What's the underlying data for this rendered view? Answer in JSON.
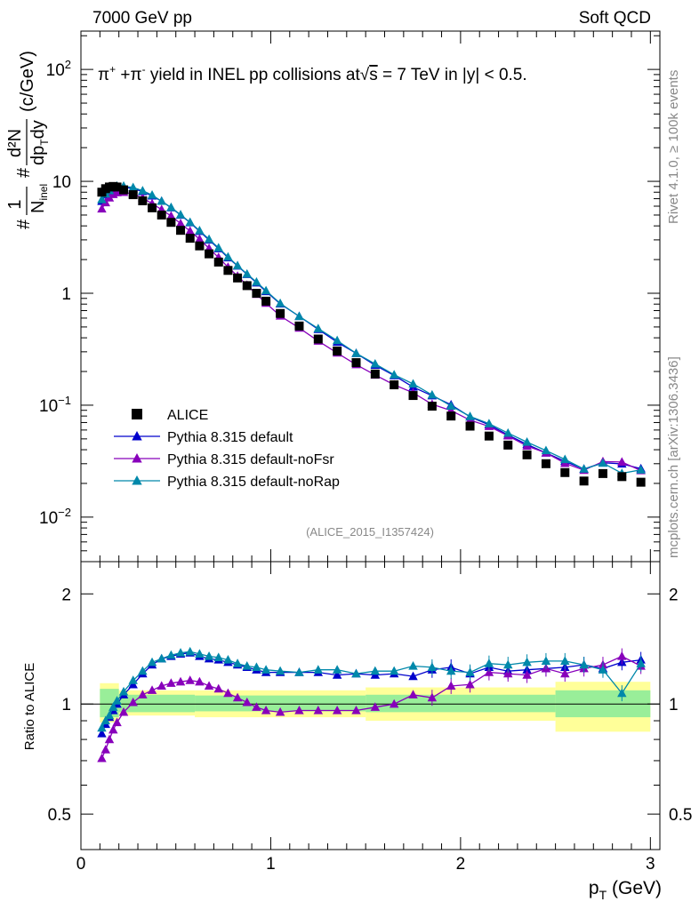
{
  "header": {
    "left": "7000 GeV pp",
    "right": "Soft QCD"
  },
  "side_labels": {
    "rivet": "Rivet 4.1.0, ≥ 100k events",
    "mcplots": "mcplots.cern.ch [arXiv:1306.3436]"
  },
  "chart_data": {
    "type": "scatter",
    "title": "π⁺ +π⁻ yield in INEL pp collisions at √s = 7 TeV in |y| < 0.5.",
    "title_parts": {
      "pre": "π",
      "sup1": "+",
      "mid": " +π",
      "sup2": "-",
      "post": " yield in INEL pp collisions at",
      "sqrt": "√",
      "s": "s",
      "tail": " =  7 TeV in |y| < 0.5."
    },
    "watermark": "(ALICE_2015_I1357424)",
    "xlabel": "p_T (GeV)",
    "xlabel_parts": {
      "main": "p",
      "sub": "T",
      "unit": " (GeV)"
    },
    "ylabel": "#1/N_inel #d²N/dp_T dy (c/GeV)",
    "ylabel_parts": {
      "hash": "#",
      "frac1_num": "1",
      "frac1_den": "N",
      "frac1_den_sub": "inel",
      "frac2_num": "d²N",
      "frac2_den_a": "dp",
      "frac2_den_sub": "T",
      "frac2_den_b": "dy",
      "unit": "(c/GeV)"
    },
    "ratio_ylabel": "Ratio to ALICE",
    "xlim": [
      0,
      3.05
    ],
    "ylim_log": [
      0.004,
      220
    ],
    "ratio_ylim": [
      0.4,
      2.45
    ],
    "x_ticks": [
      0,
      1,
      2,
      3
    ],
    "y_ticks": [
      {
        "value": 100,
        "base": "10",
        "exp": "2"
      },
      {
        "value": 10,
        "base": "10",
        "exp": ""
      },
      {
        "value": 1,
        "base": "1",
        "exp": ""
      },
      {
        "value": 0.1,
        "base": "10",
        "exp": "−1"
      },
      {
        "value": 0.01,
        "base": "10",
        "exp": "−2"
      }
    ],
    "ratio_y_ticks": [
      {
        "value": 0.5,
        "label": "0.5"
      },
      {
        "value": 1,
        "label": "1"
      },
      {
        "value": 2,
        "label": "2"
      }
    ],
    "x": [
      0.11,
      0.13,
      0.15,
      0.17,
      0.19,
      0.225,
      0.275,
      0.325,
      0.375,
      0.425,
      0.475,
      0.525,
      0.575,
      0.625,
      0.675,
      0.725,
      0.775,
      0.825,
      0.875,
      0.925,
      0.975,
      1.05,
      1.15,
      1.25,
      1.35,
      1.45,
      1.55,
      1.65,
      1.75,
      1.85,
      1.95,
      2.05,
      2.15,
      2.25,
      2.35,
      2.45,
      2.55,
      2.65,
      2.75,
      2.85,
      2.95
    ],
    "reference": {
      "name": "ALICE",
      "values": [
        8.0,
        8.6,
        8.9,
        9.0,
        8.9,
        8.4,
        7.6,
        6.7,
        5.8,
        5.0,
        4.3,
        3.65,
        3.1,
        2.65,
        2.25,
        1.9,
        1.6,
        1.37,
        1.17,
        1.0,
        0.85,
        0.66,
        0.51,
        0.39,
        0.305,
        0.24,
        0.19,
        0.152,
        0.122,
        0.098,
        0.08,
        0.065,
        0.053,
        0.044,
        0.036,
        0.03,
        0.025,
        0.021,
        0.0245,
        0.023,
        0.0205
      ],
      "band_stat": [
        {
          "x0": 0.1,
          "x1": 0.2,
          "lo": 0.92,
          "hi": 1.1
        },
        {
          "x0": 0.2,
          "x1": 0.6,
          "lo": 0.95,
          "hi": 1.06
        },
        {
          "x0": 0.6,
          "x1": 1.5,
          "lo": 0.955,
          "hi": 1.055
        },
        {
          "x0": 1.5,
          "x1": 2.5,
          "lo": 0.95,
          "hi": 1.06
        },
        {
          "x0": 2.5,
          "x1": 3.0,
          "lo": 0.92,
          "hi": 1.09
        }
      ],
      "band_syst": [
        {
          "x0": 0.1,
          "x1": 0.2,
          "lo": 0.89,
          "hi": 1.14
        },
        {
          "x0": 0.2,
          "x1": 0.6,
          "lo": 0.93,
          "hi": 1.09
        },
        {
          "x0": 0.6,
          "x1": 1.5,
          "lo": 0.92,
          "hi": 1.09
        },
        {
          "x0": 1.5,
          "x1": 2.5,
          "lo": 0.9,
          "hi": 1.11
        },
        {
          "x0": 2.5,
          "x1": 3.0,
          "lo": 0.84,
          "hi": 1.15
        }
      ]
    },
    "series": [
      {
        "name": "Pythia 8.315 default",
        "color": "#0000cc",
        "ratio": [
          0.83,
          0.88,
          0.92,
          0.96,
          1.0,
          1.06,
          1.13,
          1.21,
          1.28,
          1.33,
          1.35,
          1.37,
          1.38,
          1.35,
          1.33,
          1.32,
          1.3,
          1.28,
          1.26,
          1.24,
          1.22,
          1.22,
          1.22,
          1.22,
          1.2,
          1.21,
          1.2,
          1.21,
          1.19,
          1.24,
          1.26,
          1.21,
          1.26,
          1.23,
          1.24,
          1.25,
          1.26,
          1.28,
          1.25,
          1.3,
          1.32
        ]
      },
      {
        "name": "Pythia 8.315 default-noFsr",
        "color": "#8800bb",
        "ratio": [
          0.71,
          0.75,
          0.8,
          0.85,
          0.89,
          0.95,
          1.01,
          1.06,
          1.09,
          1.12,
          1.14,
          1.15,
          1.16,
          1.15,
          1.12,
          1.1,
          1.07,
          1.04,
          1.01,
          0.98,
          0.96,
          0.95,
          0.96,
          0.96,
          0.96,
          0.96,
          0.98,
          1.0,
          1.06,
          1.04,
          1.12,
          1.13,
          1.22,
          1.21,
          1.2,
          1.25,
          1.21,
          1.25,
          1.28,
          1.35,
          1.27
        ]
      },
      {
        "name": "Pythia 8.315 default-noRap",
        "color": "#0088aa",
        "ratio": [
          0.86,
          0.9,
          0.93,
          0.98,
          1.02,
          1.08,
          1.16,
          1.23,
          1.3,
          1.33,
          1.36,
          1.38,
          1.39,
          1.37,
          1.35,
          1.34,
          1.32,
          1.29,
          1.27,
          1.26,
          1.24,
          1.23,
          1.22,
          1.24,
          1.24,
          1.21,
          1.23,
          1.23,
          1.27,
          1.26,
          1.23,
          1.22,
          1.29,
          1.28,
          1.3,
          1.31,
          1.31,
          1.28,
          1.24,
          1.07,
          1.29
        ]
      }
    ]
  }
}
